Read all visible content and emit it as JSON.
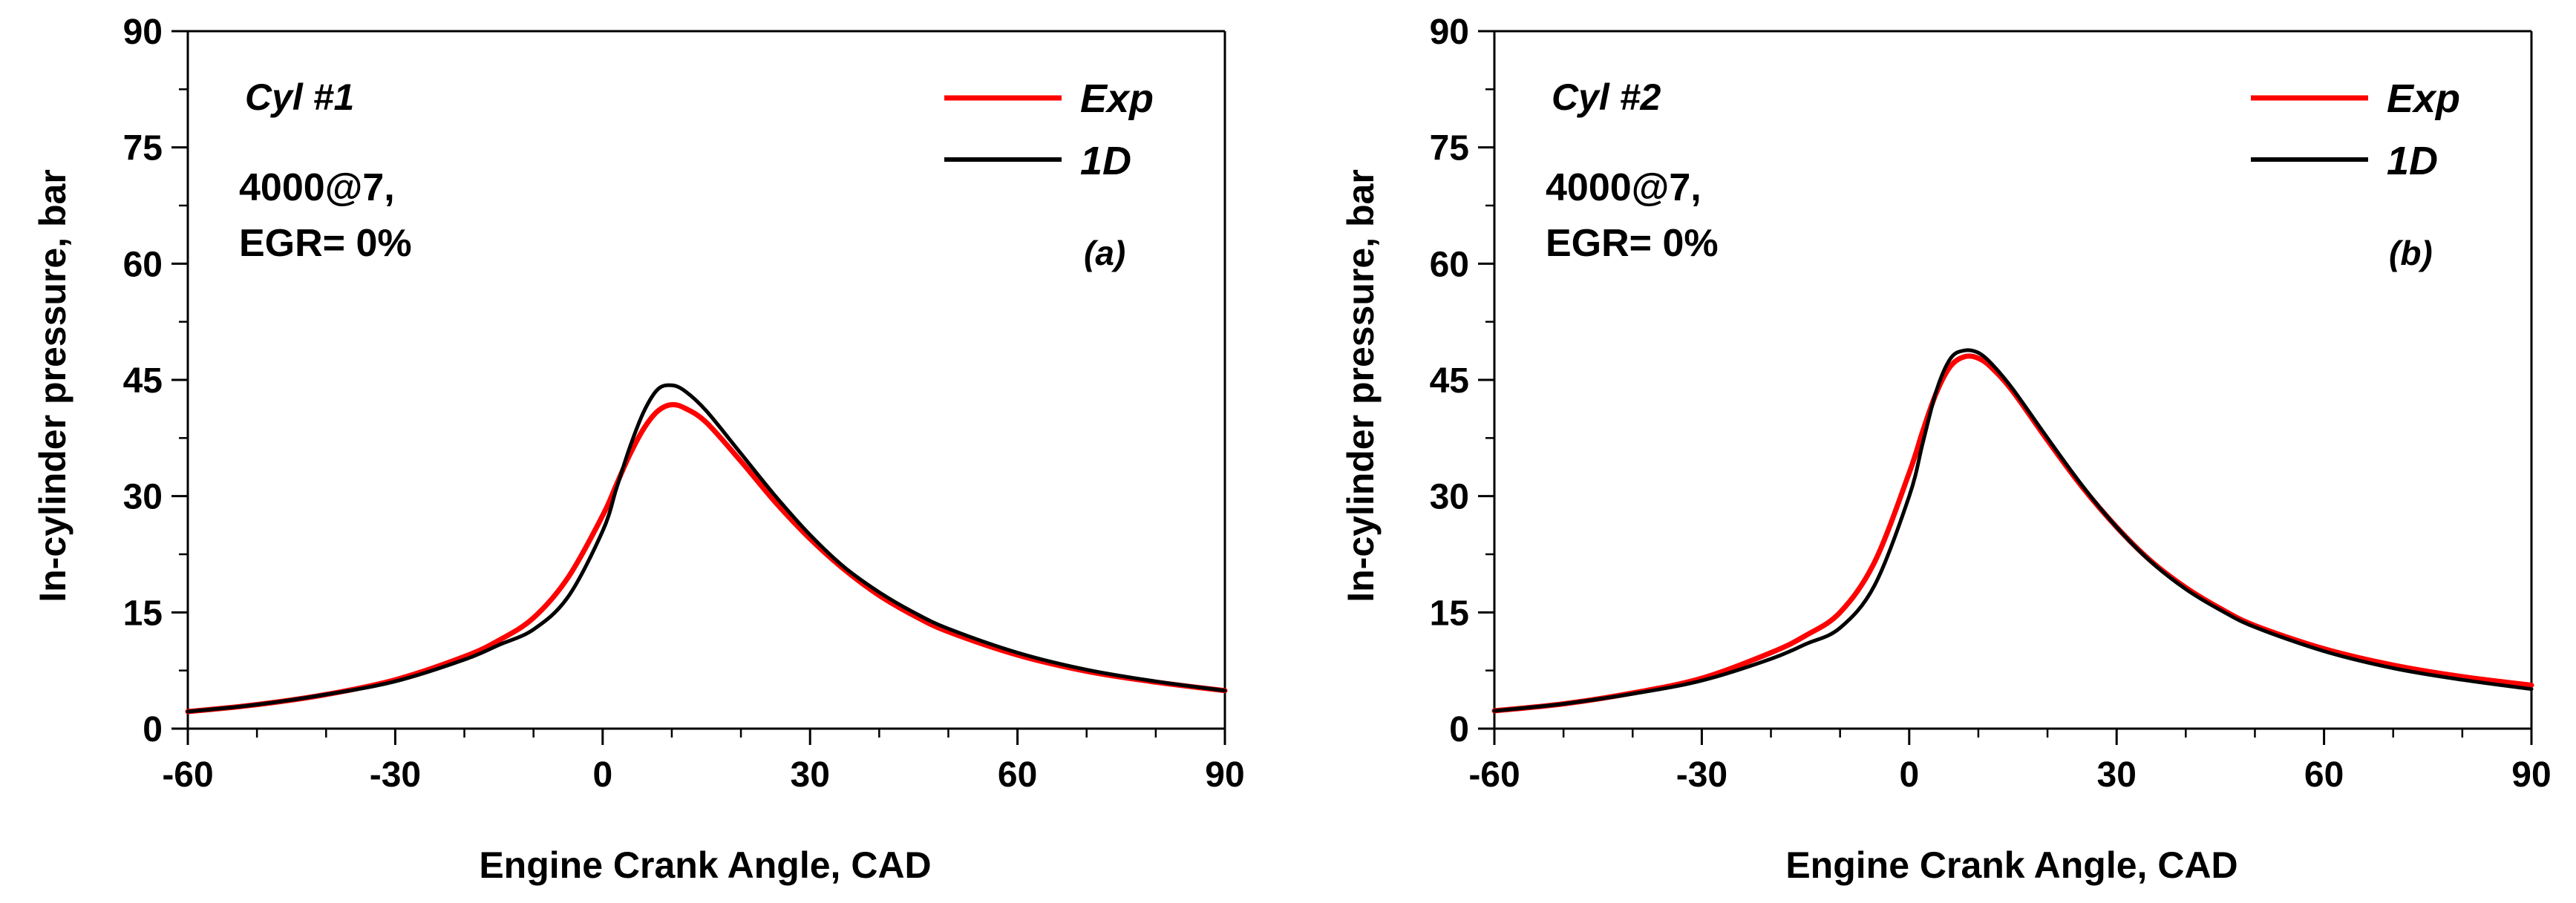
{
  "chart_data": [
    {
      "type": "line",
      "panel_label": "(a)",
      "cylinder_label": "Cyl #1",
      "condition_line1": "4000@7,",
      "condition_line2": "EGR= 0%",
      "xlabel": "Engine Crank Angle, CAD",
      "ylabel": "In-cylinder pressure, bar",
      "xlim": [
        -60,
        90
      ],
      "ylim": [
        0,
        90
      ],
      "xticks": [
        "-60",
        "-30",
        "0",
        "30",
        "60",
        "90"
      ],
      "yticks": [
        "0",
        "15",
        "30",
        "45",
        "60",
        "75",
        "90"
      ],
      "legend": [
        "Exp",
        "1D"
      ],
      "legend_position": "top-right",
      "series": [
        {
          "name": "Exp",
          "color": "#ff0000",
          "x": [
            -60,
            -50,
            -40,
            -30,
            -20,
            -15,
            -10,
            -5,
            0,
            2,
            4,
            6,
            8,
            10,
            12,
            15,
            20,
            25,
            30,
            35,
            40,
            45,
            50,
            60,
            70,
            80,
            90
          ],
          "y": [
            2.2,
            3.1,
            4.4,
            6.3,
            9.3,
            11.4,
            14.3,
            19.5,
            27.5,
            31.5,
            35.5,
            38.8,
            41.0,
            41.8,
            41.3,
            39.5,
            34.5,
            29.2,
            24.5,
            20.5,
            17.2,
            14.6,
            12.5,
            9.5,
            7.4,
            6.0,
            4.9
          ]
        },
        {
          "name": "1D",
          "color": "#000000",
          "x": [
            -60,
            -50,
            -40,
            -30,
            -20,
            -15,
            -10,
            -5,
            0,
            2,
            4,
            6,
            8,
            10,
            12,
            15,
            20,
            25,
            30,
            35,
            40,
            45,
            50,
            60,
            70,
            80,
            90
          ],
          "y": [
            2.2,
            3.1,
            4.4,
            6.1,
            8.9,
            10.8,
            12.8,
            17.0,
            25.5,
            31.0,
            36.5,
            41.0,
            43.8,
            44.3,
            43.5,
            41.0,
            35.5,
            30.0,
            25.0,
            20.8,
            17.6,
            15.0,
            12.9,
            9.8,
            7.6,
            6.1,
            4.9
          ]
        }
      ]
    },
    {
      "type": "line",
      "panel_label": "(b)",
      "cylinder_label": "Cyl #2",
      "condition_line1": "4000@7,",
      "condition_line2": "EGR= 0%",
      "xlabel": "Engine Crank Angle, CAD",
      "ylabel": "In-cylinder pressure, bar",
      "xlim": [
        -60,
        90
      ],
      "ylim": [
        0,
        90
      ],
      "xticks": [
        "-60",
        "-30",
        "0",
        "30",
        "60",
        "90"
      ],
      "yticks": [
        "0",
        "15",
        "30",
        "45",
        "60",
        "75",
        "90"
      ],
      "legend": [
        "Exp",
        "1D"
      ],
      "legend_position": "top-right",
      "series": [
        {
          "name": "Exp",
          "color": "#ff0000",
          "x": [
            -60,
            -50,
            -40,
            -30,
            -20,
            -15,
            -10,
            -5,
            0,
            2,
            4,
            6,
            8,
            10,
            12,
            15,
            20,
            25,
            30,
            35,
            40,
            45,
            50,
            60,
            70,
            80,
            90
          ],
          "y": [
            2.3,
            3.2,
            4.6,
            6.5,
            9.8,
            12.0,
            15.0,
            21.5,
            33.0,
            38.5,
            43.5,
            46.8,
            48.0,
            47.8,
            46.5,
            43.5,
            37.2,
            31.2,
            26.0,
            21.6,
            18.2,
            15.5,
            13.3,
            10.3,
            8.2,
            6.7,
            5.6
          ]
        },
        {
          "name": "1D",
          "color": "#000000",
          "x": [
            -60,
            -50,
            -40,
            -30,
            -20,
            -15,
            -10,
            -5,
            0,
            2,
            4,
            6,
            8,
            10,
            12,
            15,
            20,
            25,
            30,
            35,
            40,
            45,
            50,
            60,
            70,
            80,
            90
          ],
          "y": [
            2.3,
            3.2,
            4.5,
            6.2,
            9.0,
            10.9,
            13.0,
            18.5,
            30.0,
            37.0,
            43.8,
            47.8,
            48.8,
            48.5,
            47.0,
            43.8,
            37.5,
            31.4,
            26.0,
            21.5,
            18.0,
            15.3,
            13.1,
            10.0,
            7.8,
            6.3,
            5.1
          ]
        }
      ]
    }
  ]
}
